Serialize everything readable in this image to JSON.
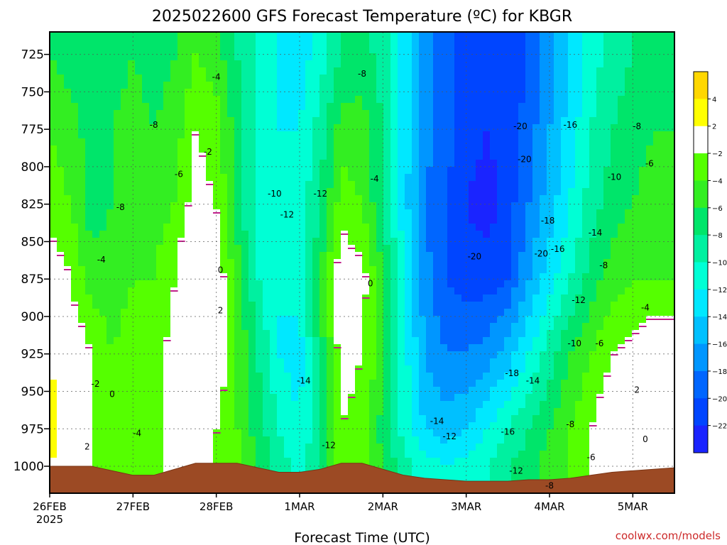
{
  "title": "2025022600 GFS Forecast Temperature (ºC) for KBGR",
  "xlabel": "Forecast Time (UTC)",
  "credit": "coolwx.com/models",
  "year_label": "2025",
  "chart_data": {
    "type": "heatmap",
    "title": "2025022600 GFS Forecast Temperature (ºC) for KBGR",
    "xlabel": "Forecast Time (UTC)",
    "ylabel": "",
    "x_ticks": [
      "26FEB",
      "27FEB",
      "28FEB",
      "1MAR",
      "2MAR",
      "3MAR",
      "4MAR",
      "5MAR"
    ],
    "x_range_days": [
      0,
      7.5
    ],
    "y_ticks": [
      725,
      750,
      775,
      800,
      825,
      850,
      875,
      900,
      925,
      950,
      975,
      1000
    ],
    "y_range_hPa": [
      1018,
      710
    ],
    "y_inverted": true,
    "grid": true,
    "colorbar": {
      "ticks": [
        4,
        2,
        -2,
        -4,
        -6,
        -8,
        -10,
        -12,
        -14,
        -16,
        -18,
        -20,
        -22
      ],
      "bins": [
        {
          "min": 4,
          "max": 6,
          "color": "#ffd700"
        },
        {
          "min": 2,
          "max": 4,
          "color": "#ffff00"
        },
        {
          "min": -2,
          "max": 2,
          "color": "#ffffff"
        },
        {
          "min": -4,
          "max": -2,
          "color": "#55ff00"
        },
        {
          "min": -6,
          "max": -4,
          "color": "#33ee22"
        },
        {
          "min": -8,
          "max": -6,
          "color": "#00e56a"
        },
        {
          "min": -10,
          "max": -8,
          "color": "#00f0a0"
        },
        {
          "min": -12,
          "max": -10,
          "color": "#00ffd5"
        },
        {
          "min": -14,
          "max": -12,
          "color": "#00e8ff"
        },
        {
          "min": -16,
          "max": -14,
          "color": "#00c0ff"
        },
        {
          "min": -18,
          "max": -16,
          "color": "#0096ff"
        },
        {
          "min": -20,
          "max": -18,
          "color": "#0066ff"
        },
        {
          "min": -22,
          "max": -20,
          "color": "#0045ff"
        },
        {
          "min": -24,
          "max": -22,
          "color": "#1a24ff"
        }
      ]
    },
    "columns_day": [
      0,
      0.25,
      0.5,
      0.75,
      1.0,
      1.25,
      1.5,
      1.75,
      2.0,
      2.25,
      2.5,
      2.75,
      3.0,
      3.25,
      3.5,
      3.75,
      4.0,
      4.25,
      4.5,
      4.75,
      5.0,
      5.25,
      5.5,
      5.75,
      6.0,
      6.25,
      6.5,
      6.75,
      7.0,
      7.25,
      7.5
    ],
    "surface_pressure_hPa": [
      1000,
      1000,
      1000,
      1003,
      1006,
      1006,
      1002,
      998,
      998,
      998,
      1001,
      1004,
      1004,
      1002,
      998,
      998,
      1002,
      1006,
      1008,
      1009,
      1010,
      1010,
      1010,
      1009,
      1009,
      1008,
      1006,
      1004,
      1003,
      1002,
      1001
    ],
    "temperature_c": {
      "725": [
        -6,
        -7,
        -8,
        -7,
        -6,
        -7,
        -6,
        -4,
        -5,
        -8,
        -10,
        -12,
        -13,
        -11,
        -8,
        -7,
        -9,
        -13,
        -17,
        -19,
        -21,
        -22,
        -22,
        -20,
        -17,
        -14,
        -11,
        -9,
        -8,
        -7,
        -7
      ],
      "775": [
        -4,
        -5,
        -7,
        -6,
        -5,
        -6,
        -5,
        -2,
        -3,
        -7,
        -10,
        -12,
        -12,
        -9,
        -5,
        -5,
        -8,
        -13,
        -17,
        -19,
        -21,
        -22,
        -21,
        -19,
        -16,
        -13,
        -10,
        -8,
        -7,
        -6,
        -6
      ],
      "825": [
        -3,
        -4,
        -7,
        -6,
        -5,
        -5,
        -4,
        -1,
        -2,
        -7,
        -11,
        -12,
        -11,
        -8,
        -3,
        -4,
        -8,
        -13,
        -18,
        -20,
        -22,
        -23,
        -21,
        -18,
        -15,
        -12,
        -9,
        -7,
        -6,
        -5,
        -5
      ],
      "875": [
        0,
        -2,
        -5,
        -5,
        -4,
        -4,
        -2,
        2,
        0,
        -5,
        -10,
        -12,
        -11,
        -6,
        0,
        -1,
        -6,
        -12,
        -17,
        -20,
        -21,
        -21,
        -20,
        -16,
        -13,
        -10,
        -7,
        -5,
        -4,
        -4,
        -4
      ],
      "925": [
        2,
        0,
        -2,
        -4,
        -3,
        -3,
        -1,
        2,
        0,
        -4,
        -8,
        -12,
        -13,
        -7,
        -1,
        -2,
        -5,
        -11,
        -16,
        -18,
        -18,
        -17,
        -15,
        -12,
        -9,
        -6,
        -4,
        -2,
        -1,
        0,
        0
      ],
      "975": [
        3,
        1,
        -2,
        -4,
        -4,
        -3,
        0,
        0,
        -2,
        -4,
        -7,
        -10,
        -12,
        -8,
        -2,
        -3,
        -7,
        -11,
        -14,
        -15,
        -14,
        -12,
        -10,
        -8,
        -6,
        -4,
        -2,
        0,
        0,
        0,
        1
      ],
      "1000": [
        2,
        1,
        -2,
        -4,
        -4,
        -3,
        0,
        0,
        -2,
        -3,
        -6,
        -9,
        -11,
        -8,
        -2,
        -3,
        -6,
        -9,
        -11,
        -12,
        -11,
        -10,
        -8,
        -7,
        -5,
        -4,
        -2,
        0,
        0,
        0,
        0
      ]
    },
    "contour_labels": [
      {
        "day": 1.25,
        "hPa": 772,
        "text": "-8"
      },
      {
        "day": 1.55,
        "hPa": 805,
        "text": "-6"
      },
      {
        "day": 0.85,
        "hPa": 827,
        "text": "-8"
      },
      {
        "day": 0.62,
        "hPa": 862,
        "text": "-4"
      },
      {
        "day": 2.0,
        "hPa": 740,
        "text": "-4"
      },
      {
        "day": 1.9,
        "hPa": 790,
        "text": "-2"
      },
      {
        "day": 2.05,
        "hPa": 869,
        "text": "0"
      },
      {
        "day": 2.05,
        "hPa": 896,
        "text": "2"
      },
      {
        "day": 2.7,
        "hPa": 818,
        "text": "-10"
      },
      {
        "day": 2.85,
        "hPa": 832,
        "text": "-12"
      },
      {
        "day": 3.25,
        "hPa": 818,
        "text": "-12"
      },
      {
        "day": 3.05,
        "hPa": 943,
        "text": "-14"
      },
      {
        "day": 3.35,
        "hPa": 986,
        "text": "-12"
      },
      {
        "day": 3.75,
        "hPa": 738,
        "text": "-8"
      },
      {
        "day": 3.9,
        "hPa": 808,
        "text": "-4"
      },
      {
        "day": 3.85,
        "hPa": 878,
        "text": "0"
      },
      {
        "day": 5.65,
        "hPa": 773,
        "text": "-20"
      },
      {
        "day": 5.7,
        "hPa": 795,
        "text": "-20"
      },
      {
        "day": 6.25,
        "hPa": 772,
        "text": "-16"
      },
      {
        "day": 5.1,
        "hPa": 860,
        "text": "-20"
      },
      {
        "day": 5.9,
        "hPa": 858,
        "text": "-20"
      },
      {
        "day": 6.1,
        "hPa": 855,
        "text": "-16"
      },
      {
        "day": 5.98,
        "hPa": 836,
        "text": "-18"
      },
      {
        "day": 6.55,
        "hPa": 844,
        "text": "-14"
      },
      {
        "day": 6.78,
        "hPa": 807,
        "text": "-10"
      },
      {
        "day": 6.65,
        "hPa": 866,
        "text": "-8"
      },
      {
        "day": 6.35,
        "hPa": 889,
        "text": "-12"
      },
      {
        "day": 6.3,
        "hPa": 918,
        "text": "-10"
      },
      {
        "day": 6.6,
        "hPa": 918,
        "text": "-6"
      },
      {
        "day": 7.05,
        "hPa": 773,
        "text": "-8"
      },
      {
        "day": 7.2,
        "hPa": 798,
        "text": "-6"
      },
      {
        "day": 7.15,
        "hPa": 894,
        "text": "-4"
      },
      {
        "day": 7.05,
        "hPa": 949,
        "text": "2"
      },
      {
        "day": 7.15,
        "hPa": 982,
        "text": "0"
      },
      {
        "day": 5.55,
        "hPa": 938,
        "text": "-18"
      },
      {
        "day": 5.8,
        "hPa": 943,
        "text": "-14"
      },
      {
        "day": 4.65,
        "hPa": 970,
        "text": "-14"
      },
      {
        "day": 4.8,
        "hPa": 980,
        "text": "-12"
      },
      {
        "day": 5.5,
        "hPa": 977,
        "text": "-16"
      },
      {
        "day": 5.6,
        "hPa": 1003,
        "text": "-12"
      },
      {
        "day": 6.25,
        "hPa": 972,
        "text": "-8"
      },
      {
        "day": 6.5,
        "hPa": 994,
        "text": "-6"
      },
      {
        "day": 6.0,
        "hPa": 1013,
        "text": "-8"
      },
      {
        "day": 0.55,
        "hPa": 945,
        "text": "-2"
      },
      {
        "day": 0.75,
        "hPa": 952,
        "text": "0"
      },
      {
        "day": 1.05,
        "hPa": 978,
        "text": "-4"
      },
      {
        "day": 0.45,
        "hPa": 987,
        "text": "2"
      }
    ]
  }
}
